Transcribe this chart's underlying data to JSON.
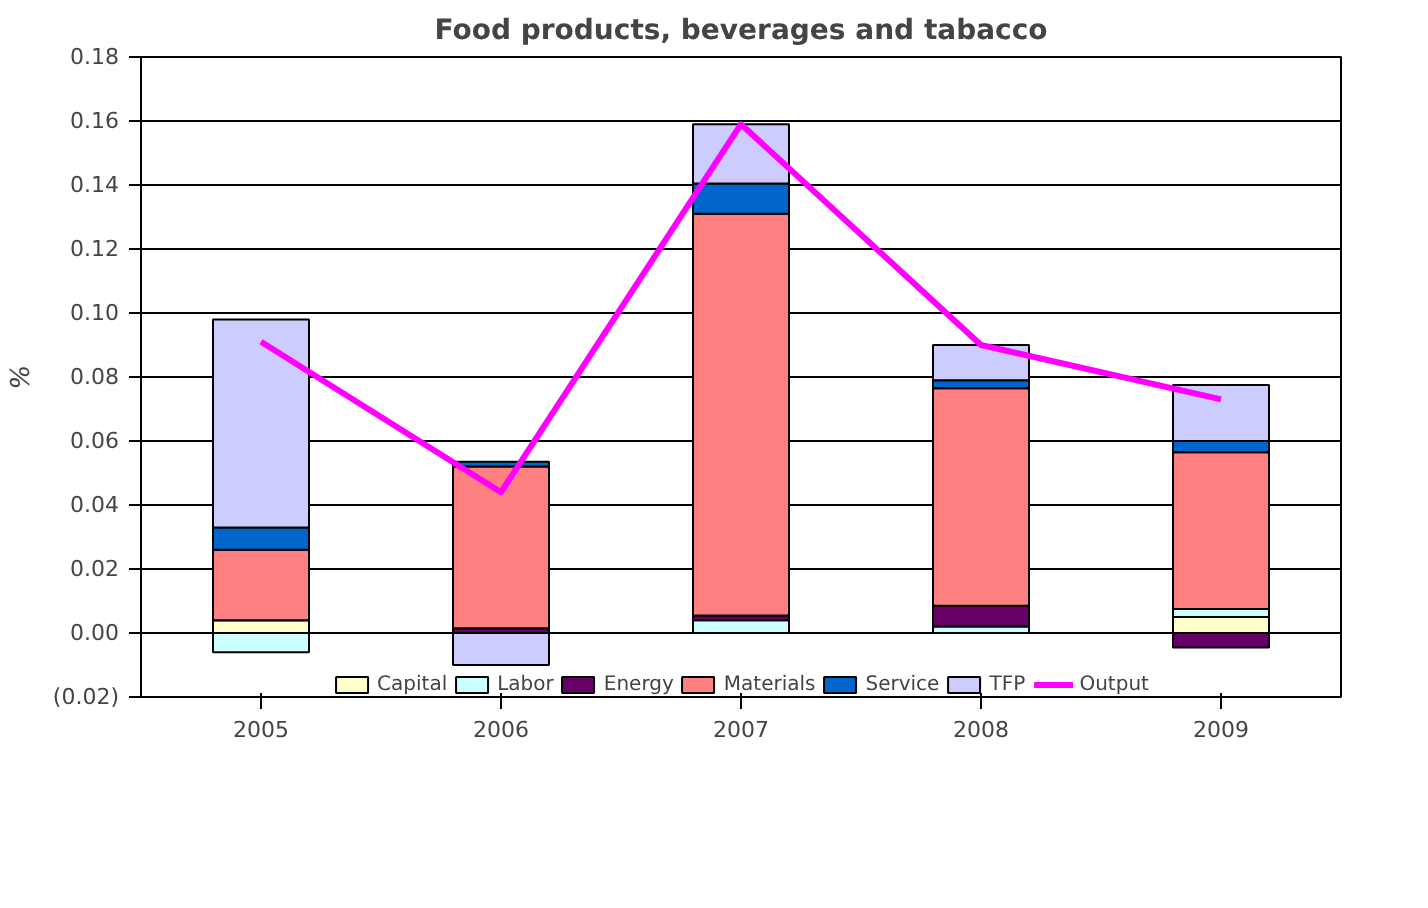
{
  "chart_data": {
    "type": "bar",
    "stacked": true,
    "title": "Food products, beverages and tabacco",
    "ylabel": "%",
    "categories": [
      "2005",
      "2006",
      "2007",
      "2008",
      "2009"
    ],
    "series": [
      {
        "name": "Capital",
        "color": "#ffffcc",
        "values": [
          0.004,
          0,
          null,
          null,
          0.005
        ]
      },
      {
        "name": "Labor",
        "color": "#ccffff",
        "values": [
          -0.006,
          0,
          0.004,
          0.002,
          0.0025
        ]
      },
      {
        "name": "Energy",
        "color": "#660066",
        "values": [
          0,
          0.0015,
          0.0015,
          0.0065,
          -0.0045
        ]
      },
      {
        "name": "Materials",
        "color": "#ff8080",
        "values": [
          0.022,
          0.0505,
          0.1255,
          0.068,
          0.049
        ]
      },
      {
        "name": "Service",
        "color": "#0066cc",
        "values": [
          0.007,
          0.0015,
          0.0095,
          0.0025,
          0.0035
        ]
      },
      {
        "name": "TFP",
        "color": "#ccccff",
        "values": [
          0.065,
          -0.01,
          0.0185,
          0.011,
          0.0175
        ]
      },
      {
        "name": "Output",
        "type": "line",
        "color": "#ff00ff",
        "values": [
          0.091,
          0.044,
          0.159,
          0.09,
          0.073
        ]
      }
    ],
    "ylim": [
      -0.02,
      0.18
    ],
    "yticks": [
      {
        "value": -0.02,
        "label": "(0.02)"
      },
      {
        "value": 0.0,
        "label": "0.00"
      },
      {
        "value": 0.02,
        "label": "0.02"
      },
      {
        "value": 0.04,
        "label": "0.04"
      },
      {
        "value": 0.06,
        "label": "0.06"
      },
      {
        "value": 0.08,
        "label": "0.08"
      },
      {
        "value": 0.1,
        "label": "0.10"
      },
      {
        "value": 0.12,
        "label": "0.12"
      },
      {
        "value": 0.14,
        "label": "0.14"
      },
      {
        "value": 0.16,
        "label": "0.16"
      },
      {
        "value": 0.18,
        "label": "0.18"
      }
    ],
    "grid": "y",
    "legend": "bottom"
  }
}
